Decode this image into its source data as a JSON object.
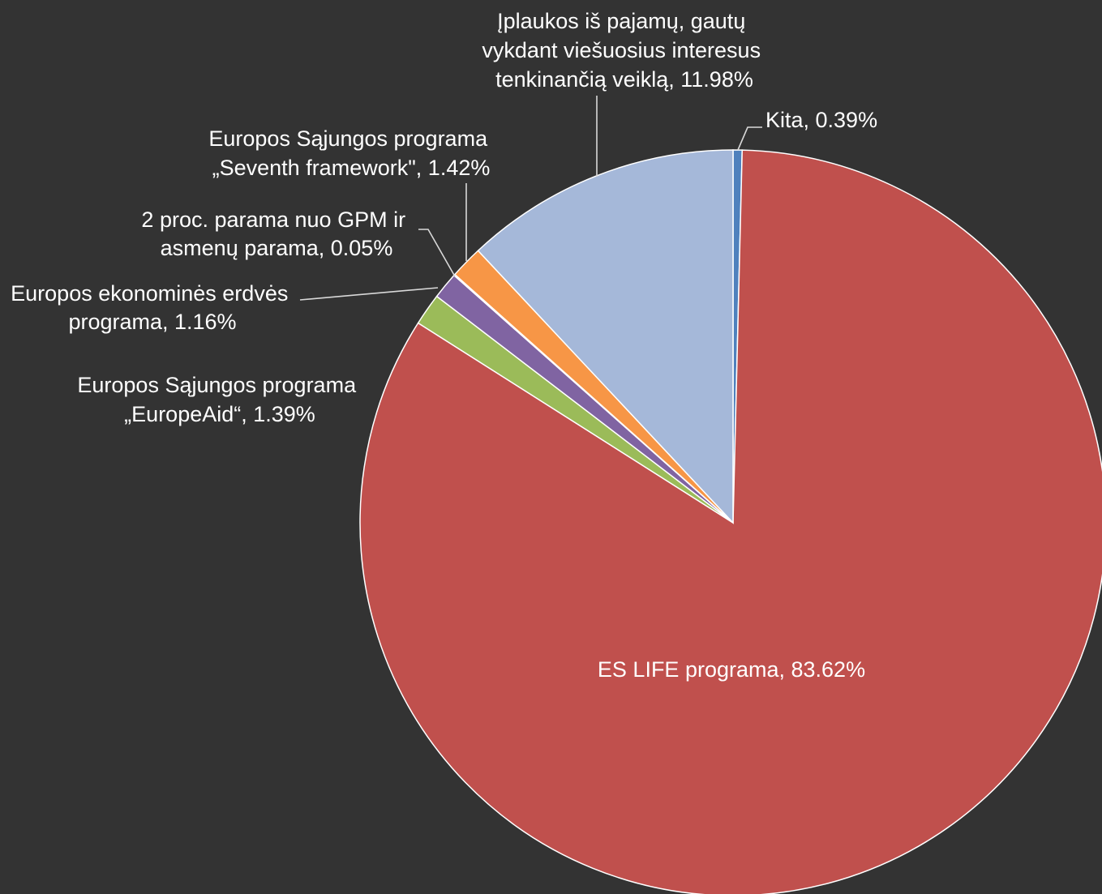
{
  "chart_data": {
    "type": "pie",
    "title": "",
    "start_angle_deg": 90,
    "direction": "clockwise",
    "slices": [
      {
        "name": "Kita",
        "value": 0.39,
        "color": "#4f81bd",
        "label_lines": [
          "Kita, 0.39%"
        ]
      },
      {
        "name": "ES LIFE programa",
        "value": 83.62,
        "color": "#c0504d",
        "label_lines": [
          "ES LIFE programa, 83.62%"
        ]
      },
      {
        "name": "Europos Sąjungos programa „EuropeAid“",
        "value": 1.39,
        "color": "#9bbb59",
        "label_lines": [
          "Europos Sąjungos programa",
          "„EuropeAid“, 1.39%"
        ]
      },
      {
        "name": "Europos ekonominės erdvės programa",
        "value": 1.16,
        "color": "#8064a2",
        "label_lines": [
          "Europos ekonominės erdvės",
          "programa, 1.16%"
        ]
      },
      {
        "name": "2 proc. parama nuo GPM ir asmenų parama",
        "value": 0.05,
        "color": "#4bacc6",
        "label_lines": [
          "2 proc. parama nuo GPM ir",
          "asmenų parama, 0.05%"
        ]
      },
      {
        "name": "Europos Sąjungos programa „Seventh framework\"",
        "value": 1.42,
        "color": "#f79646",
        "label_lines": [
          "Europos Sąjungos programa",
          "„Seventh  framework\", 1.42%"
        ]
      },
      {
        "name": "Įplaukos iš pajamų, gautų vykdant viešuosius interesus tenkinančią veiklą",
        "value": 11.98,
        "color": "#a5b8d9",
        "label_lines": [
          "Įplaukos iš pajamų, gautų",
          "vykdant viešuosius interesus",
          "tenkinančią veiklą, 11.98%"
        ]
      }
    ]
  }
}
